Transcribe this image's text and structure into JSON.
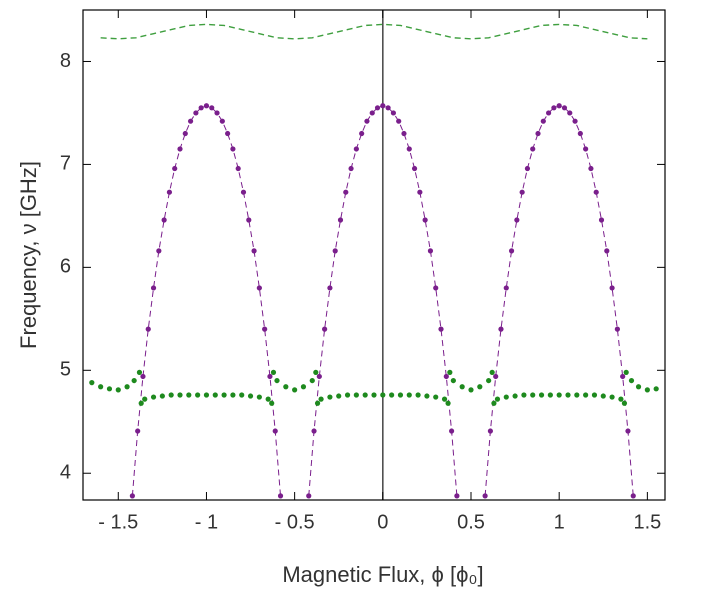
{
  "chart_data": {
    "type": "scatter",
    "xlabel": "Magnetic Flux, ϕ [ϕ₀]",
    "ylabel": "Frequency, ν [GHz]",
    "xlim": [
      -1.7,
      1.6
    ],
    "ylim": [
      3.74,
      8.5
    ],
    "xticks": [
      {
        "value": -1.5,
        "label": "- 1.5"
      },
      {
        "value": -1,
        "label": "- 1"
      },
      {
        "value": -0.5,
        "label": "- 0.5"
      },
      0,
      0.5,
      1,
      1.5
    ],
    "yticks": [
      4,
      5,
      6,
      7,
      8
    ],
    "vline": 0,
    "series": [
      {
        "color": "#7a1f8c",
        "marker": true,
        "dash": true,
        "x": [
          -1.42,
          -1.39,
          -1.36,
          -1.33,
          -1.3,
          -1.27,
          -1.24,
          -1.21,
          -1.18,
          -1.15,
          -1.12,
          -1.09,
          -1.06,
          -1.03,
          -1,
          -0.97,
          -0.94,
          -0.91,
          -0.88,
          -0.85,
          -0.82,
          -0.79,
          -0.76,
          -0.73,
          -0.7,
          -0.67,
          -0.64,
          -0.61,
          -0.58,
          -0.5,
          -0.42,
          -0.39,
          -0.36,
          -0.33,
          -0.3,
          -0.27,
          -0.24,
          -0.21,
          -0.18,
          -0.15,
          -0.12,
          -0.09,
          -0.06,
          -0.03,
          0,
          0.03,
          0.06,
          0.09,
          0.12,
          0.15,
          0.18,
          0.21,
          0.24,
          0.27,
          0.3,
          0.33,
          0.36,
          0.39,
          0.42,
          0.5,
          0.58,
          0.61,
          0.64,
          0.67,
          0.7,
          0.73,
          0.76,
          0.79,
          0.82,
          0.85,
          0.88,
          0.91,
          0.94,
          0.97,
          1,
          1.03,
          1.06,
          1.09,
          1.12,
          1.15,
          1.18,
          1.21,
          1.24,
          1.27,
          1.3,
          1.33,
          1.36,
          1.39,
          1.42
        ],
        "values": [
          3.78,
          4.41,
          4.94,
          5.4,
          5.8,
          6.16,
          6.46,
          6.73,
          6.96,
          7.15,
          7.3,
          7.42,
          7.5,
          7.55,
          7.57,
          7.55,
          7.5,
          7.42,
          7.3,
          7.15,
          6.96,
          6.73,
          6.46,
          6.16,
          5.8,
          5.4,
          4.94,
          4.41,
          3.78,
          null,
          3.78,
          4.41,
          4.94,
          5.4,
          5.8,
          6.16,
          6.46,
          6.73,
          6.96,
          7.15,
          7.3,
          7.42,
          7.5,
          7.55,
          7.57,
          7.55,
          7.5,
          7.42,
          7.3,
          7.15,
          6.96,
          6.73,
          6.46,
          6.16,
          5.8,
          5.4,
          4.94,
          4.41,
          3.78,
          null,
          3.78,
          4.41,
          4.94,
          5.4,
          5.8,
          6.16,
          6.46,
          6.73,
          6.96,
          7.15,
          7.3,
          7.42,
          7.5,
          7.55,
          7.57,
          7.55,
          7.5,
          7.42,
          7.3,
          7.15,
          6.96,
          6.73,
          6.46,
          6.16,
          5.8,
          5.4,
          4.94,
          4.41,
          3.78
        ]
      },
      {
        "color": "#1e8a1e",
        "marker": true,
        "dash": false,
        "x": [
          -1.65,
          -1.6,
          -1.55,
          -1.5,
          -1.45,
          -1.41,
          -1.38,
          -1.375,
          -1.37,
          -1.35,
          -1.3,
          -1.25,
          -1.2,
          -1.15,
          -1.1,
          -1.05,
          -1,
          -0.95,
          -0.9,
          -0.85,
          -0.8,
          -0.75,
          -0.7,
          -0.65,
          -0.63,
          -0.625,
          -0.62,
          -0.6,
          -0.55,
          -0.5,
          -0.45,
          -0.4,
          -0.38,
          -0.375,
          -0.37,
          -0.35,
          -0.3,
          -0.25,
          -0.2,
          -0.15,
          -0.1,
          -0.05,
          0,
          0.05,
          0.1,
          0.15,
          0.2,
          0.25,
          0.3,
          0.35,
          0.37,
          0.375,
          0.38,
          0.4,
          0.45,
          0.5,
          0.55,
          0.6,
          0.62,
          0.625,
          0.63,
          0.65,
          0.7,
          0.75,
          0.8,
          0.85,
          0.9,
          0.95,
          1,
          1.05,
          1.1,
          1.15,
          1.2,
          1.25,
          1.3,
          1.35,
          1.37,
          1.375,
          1.38,
          1.41,
          1.45,
          1.5,
          1.55
        ],
        "values": [
          4.88,
          4.84,
          4.82,
          4.81,
          4.84,
          4.9,
          4.98,
          null,
          4.68,
          4.72,
          4.74,
          4.75,
          4.76,
          4.76,
          4.76,
          4.76,
          4.76,
          4.76,
          4.76,
          4.76,
          4.76,
          4.75,
          4.74,
          4.72,
          4.68,
          null,
          4.98,
          4.9,
          4.84,
          4.81,
          4.84,
          4.9,
          4.98,
          null,
          4.68,
          4.72,
          4.74,
          4.75,
          4.76,
          4.76,
          4.76,
          4.76,
          4.76,
          4.76,
          4.76,
          4.76,
          4.76,
          4.75,
          4.74,
          4.72,
          4.68,
          null,
          4.98,
          4.9,
          4.84,
          4.81,
          4.84,
          4.9,
          4.98,
          null,
          4.68,
          4.72,
          4.74,
          4.75,
          4.76,
          4.76,
          4.76,
          4.76,
          4.76,
          4.76,
          4.76,
          4.76,
          4.76,
          4.75,
          4.74,
          4.72,
          4.68,
          null,
          4.98,
          4.9,
          4.84,
          4.81,
          4.82
        ]
      },
      {
        "color": "#3f9f3f",
        "marker": false,
        "dash": true,
        "x": [
          -1.6,
          -1.5,
          -1.4,
          -1.3,
          -1.2,
          -1.1,
          -1,
          -0.9,
          -0.8,
          -0.7,
          -0.6,
          -0.5,
          -0.4,
          -0.3,
          -0.2,
          -0.1,
          0,
          0.1,
          0.2,
          0.3,
          0.4,
          0.5,
          0.6,
          0.7,
          0.8,
          0.9,
          1,
          1.1,
          1.2,
          1.3,
          1.4,
          1.5
        ],
        "values": [
          8.23,
          8.22,
          8.23,
          8.27,
          8.31,
          8.35,
          8.36,
          8.35,
          8.31,
          8.27,
          8.23,
          8.22,
          8.23,
          8.27,
          8.31,
          8.35,
          8.36,
          8.35,
          8.31,
          8.27,
          8.23,
          8.22,
          8.23,
          8.27,
          8.31,
          8.35,
          8.36,
          8.35,
          8.31,
          8.27,
          8.23,
          8.22
        ]
      }
    ]
  }
}
